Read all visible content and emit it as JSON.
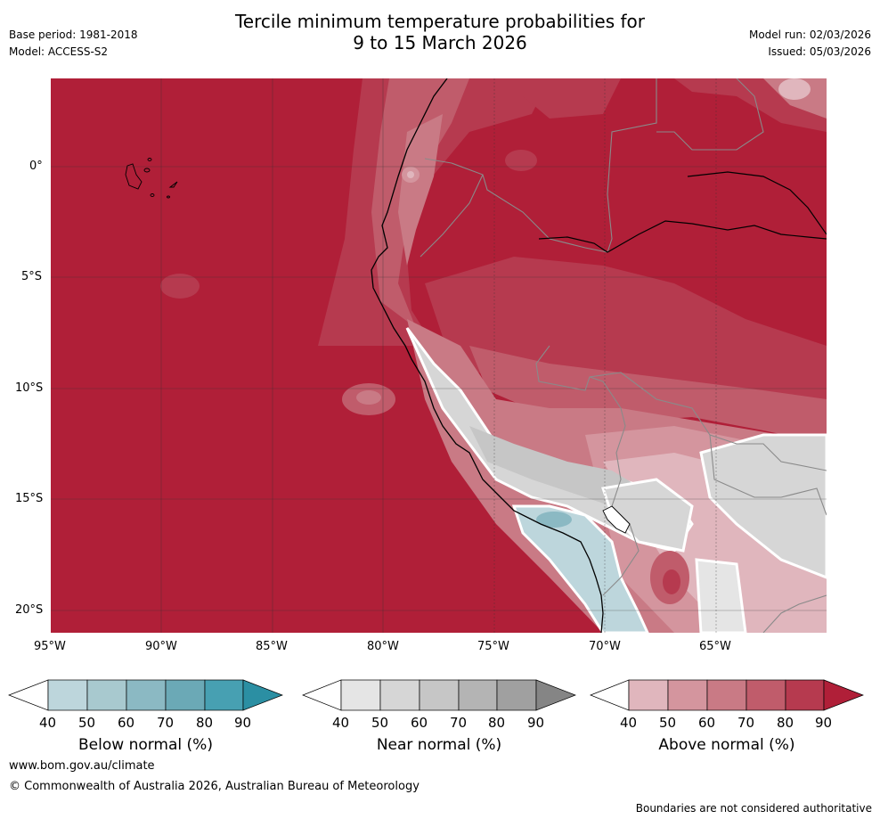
{
  "header": {
    "title_line1": "Tercile minimum temperature probabilities for",
    "title_line2": "9 to 15 March 2026",
    "base_period": "Base period: 1981-2018",
    "model": "Model: ACCESS-S2",
    "model_run": "Model run: 02/03/2026",
    "issued": "Issued: 05/03/2026"
  },
  "map": {
    "lat_ticks": [
      "0°",
      "5°S",
      "10°S",
      "15°S",
      "20°S"
    ],
    "lon_ticks": [
      "95°W",
      "90°W",
      "85°W",
      "80°W",
      "75°W",
      "70°W",
      "65°W"
    ]
  },
  "colorbars": [
    {
      "label": "Below normal (%)",
      "ticks": [
        "40",
        "50",
        "60",
        "70",
        "80",
        "90"
      ],
      "colors": [
        "#bdd6dc",
        "#a8c9cf",
        "#8bb9c3",
        "#6ba9b6",
        "#47a0b2",
        "#2b8fa3"
      ]
    },
    {
      "label": "Near normal (%)",
      "ticks": [
        "40",
        "50",
        "60",
        "70",
        "80",
        "90"
      ],
      "colors": [
        "#e5e5e5",
        "#d6d6d6",
        "#c6c6c6",
        "#b4b4b4",
        "#a0a0a0",
        "#858585"
      ]
    },
    {
      "label": "Above normal (%)",
      "ticks": [
        "40",
        "50",
        "60",
        "70",
        "80",
        "90"
      ],
      "colors": [
        "#e0b6bd",
        "#d4959e",
        "#c97a85",
        "#c05c6b",
        "#b63a4f",
        "#b01f38"
      ]
    }
  ],
  "footer": {
    "url": "www.bom.gov.au/climate",
    "copyright": "© Commonwealth of Australia 2026, Australian Bureau of Meteorology",
    "disclaimer": "Boundaries are not considered authoritative"
  }
}
